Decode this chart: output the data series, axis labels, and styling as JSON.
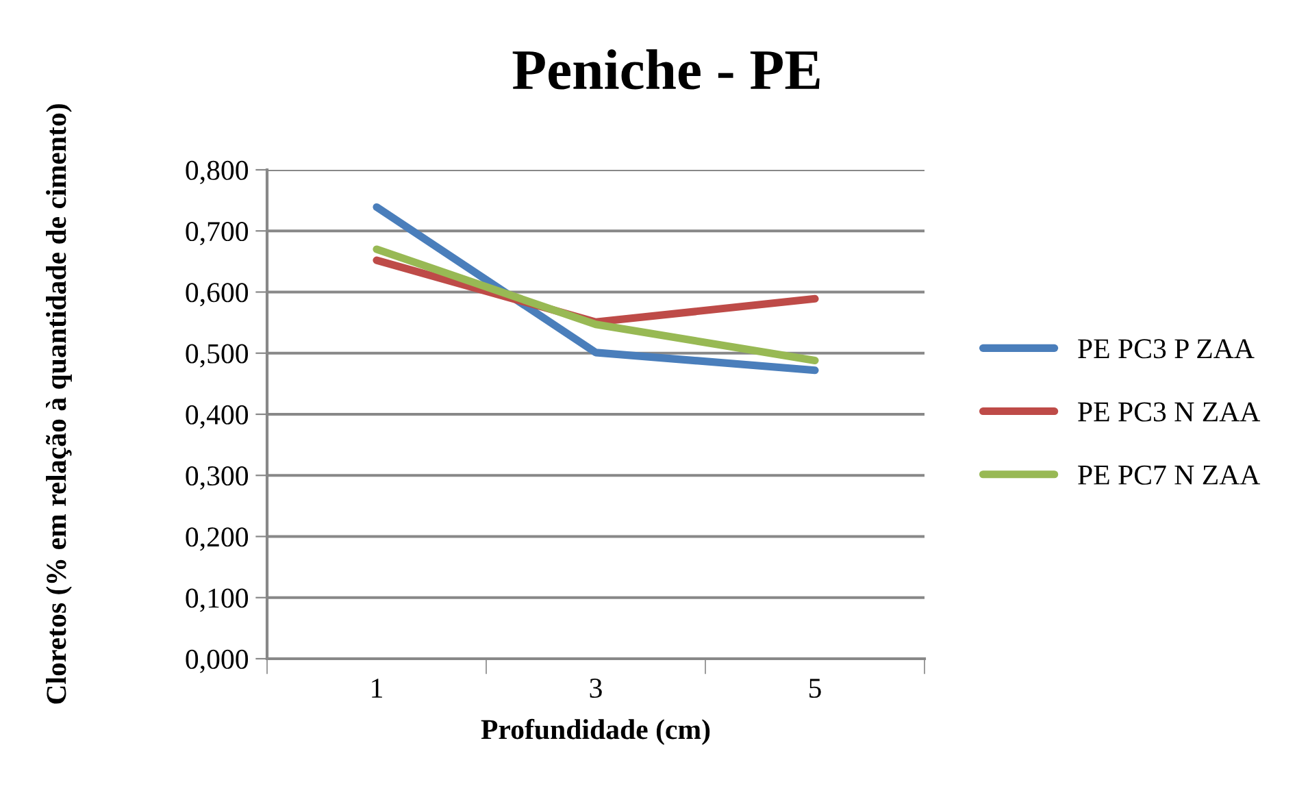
{
  "chart_data": {
    "type": "line",
    "title": "Peniche - PE",
    "xlabel": "Profundidade (cm)",
    "ylabel": "Cloretos (% em relação à quantidade de cimento)",
    "categories": [
      "1",
      "3",
      "5"
    ],
    "series": [
      {
        "name": "PE PC3 P ZAA",
        "color": "#4a7ebb",
        "values": [
          0.739,
          0.501,
          0.472
        ]
      },
      {
        "name": "PE PC3 N ZAA",
        "color": "#be4b48",
        "values": [
          0.652,
          0.551,
          0.589
        ]
      },
      {
        "name": "PE PC7 N ZAA",
        "color": "#98b954",
        "values": [
          0.67,
          0.547,
          0.488
        ]
      }
    ],
    "ylim": [
      0,
      0.8
    ],
    "yticks": [
      {
        "value": 0,
        "label": "0,000"
      },
      {
        "value": 0.1,
        "label": "0,100"
      },
      {
        "value": 0.2,
        "label": "0,200"
      },
      {
        "value": 0.3,
        "label": "0,300"
      },
      {
        "value": 0.4,
        "label": "0,400"
      },
      {
        "value": 0.5,
        "label": "0,500"
      },
      {
        "value": 0.6,
        "label": "0,600"
      },
      {
        "value": 0.7,
        "label": "0,700"
      },
      {
        "value": 0.8,
        "label": "0,800"
      }
    ],
    "grid": "y",
    "legend": "right",
    "marker": "none",
    "line_style": "solid"
  }
}
